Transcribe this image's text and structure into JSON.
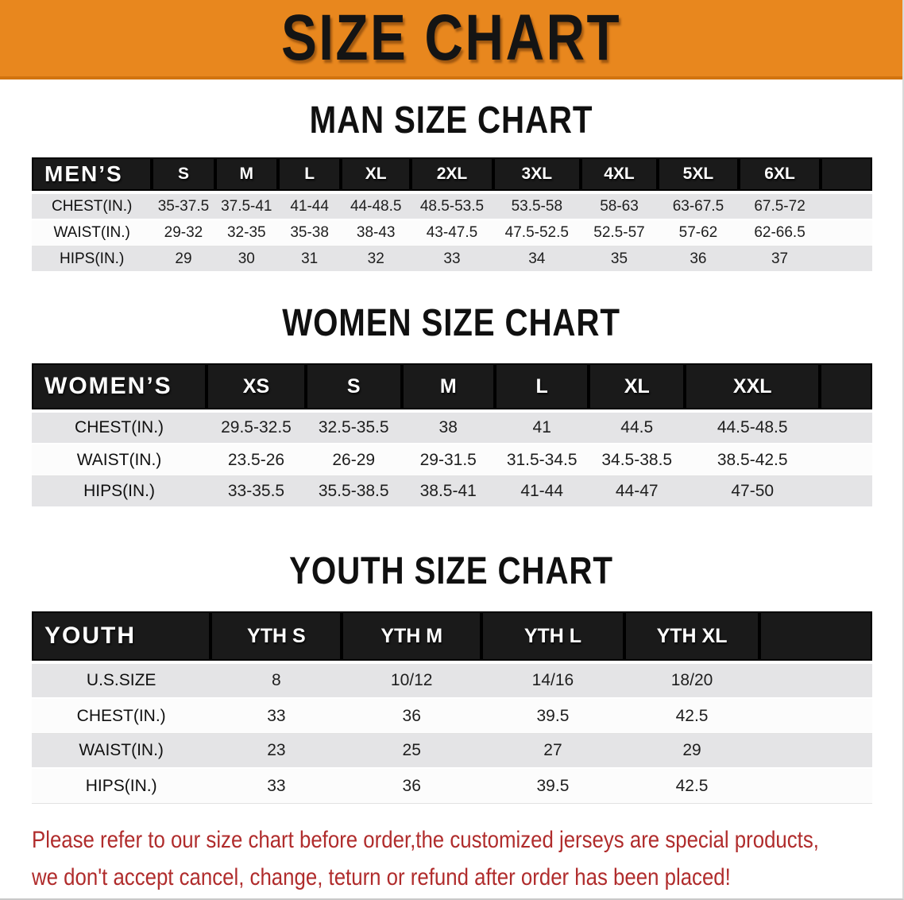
{
  "banner": {
    "title": "SIZE CHART"
  },
  "colors": {
    "banner_bg": "#E8871E",
    "table_header_bg": "#1A1A1A",
    "row_gray": "#E4E4E6",
    "disclaimer_red": "#B02C2C"
  },
  "sections": [
    {
      "heading": "MAN SIZE CHART",
      "table": {
        "header_label": "MEN’S",
        "columns": [
          "S",
          "M",
          "L",
          "XL",
          "2XL",
          "3XL",
          "4XL",
          "5XL",
          "6XL"
        ],
        "rows": [
          {
            "label": "CHEST(IN.)",
            "values": [
              "35-37.5",
              "37.5-41",
              "41-44",
              "44-48.5",
              "48.5-53.5",
              "53.5-58",
              "58-63",
              "63-67.5",
              "67.5-72"
            ]
          },
          {
            "label": "WAIST(IN.)",
            "values": [
              "29-32",
              "32-35",
              "35-38",
              "38-43",
              "43-47.5",
              "47.5-52.5",
              "52.5-57",
              "57-62",
              "62-66.5"
            ]
          },
          {
            "label": "HIPS(IN.)",
            "values": [
              "29",
              "30",
              "31",
              "32",
              "33",
              "34",
              "35",
              "36",
              "37"
            ]
          }
        ]
      }
    },
    {
      "heading": "WOMEN SIZE CHART",
      "table": {
        "header_label": "WOMEN’S",
        "columns": [
          "XS",
          "S",
          "M",
          "L",
          "XL",
          "XXL"
        ],
        "rows": [
          {
            "label": "CHEST(IN.)",
            "values": [
              "29.5-32.5",
              "32.5-35.5",
              "38",
              "41",
              "44.5",
              "44.5-48.5"
            ]
          },
          {
            "label": "WAIST(IN.)",
            "values": [
              "23.5-26",
              "26-29",
              "29-31.5",
              "31.5-34.5",
              "34.5-38.5",
              "38.5-42.5"
            ]
          },
          {
            "label": "HIPS(IN.)",
            "values": [
              "33-35.5",
              "35.5-38.5",
              "38.5-41",
              "41-44",
              "44-47",
              "47-50"
            ]
          }
        ]
      }
    },
    {
      "heading": "YOUTH SIZE CHART",
      "table": {
        "header_label": "YOUTH",
        "columns": [
          "YTH S",
          "YTH M",
          "YTH L",
          "YTH XL"
        ],
        "rows": [
          {
            "label": "U.S.SIZE",
            "values": [
              "8",
              "10/12",
              "14/16",
              "18/20"
            ]
          },
          {
            "label": "CHEST(IN.)",
            "values": [
              "33",
              "36",
              "39.5",
              "42.5"
            ]
          },
          {
            "label": "WAIST(IN.)",
            "values": [
              "23",
              "25",
              "27",
              "29"
            ]
          },
          {
            "label": "HIPS(IN.)",
            "values": [
              "33",
              "36",
              "39.5",
              "42.5"
            ]
          }
        ]
      }
    }
  ],
  "disclaimer": {
    "line1": "Please refer to our size chart before order,the customized jerseys are special products,",
    "line2": "we don't accept cancel, change, teturn or refund after order has been placed!"
  }
}
